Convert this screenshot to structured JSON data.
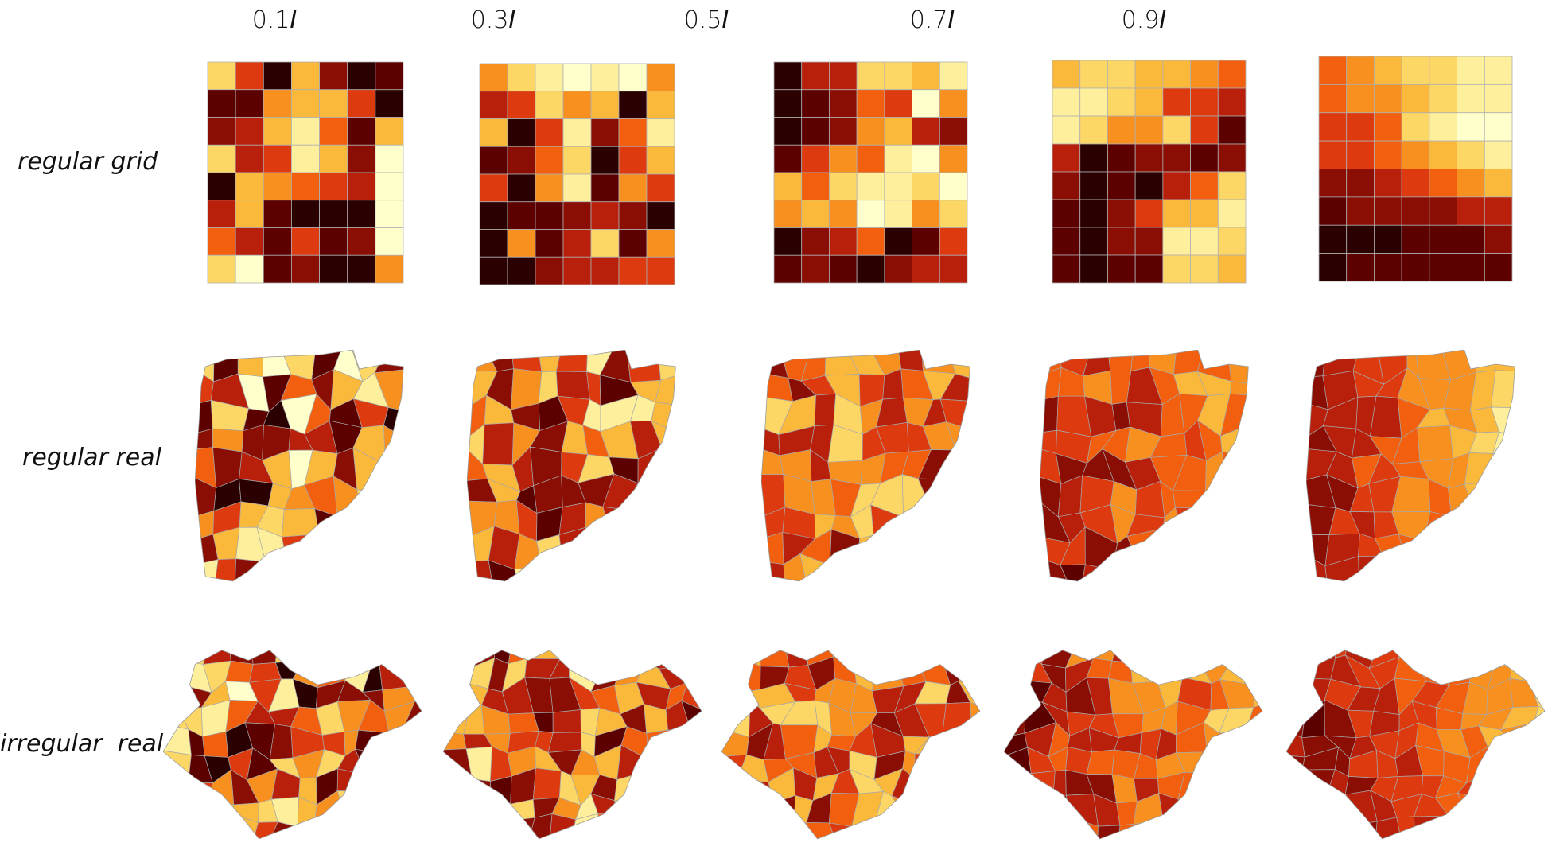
{
  "columns": [
    {
      "prefix": "0.1",
      "suffix": "I"
    },
    {
      "prefix": "0.3",
      "suffix": "I"
    },
    {
      "prefix": "0.5",
      "suffix": "I"
    },
    {
      "prefix": "0.7",
      "suffix": "I"
    },
    {
      "prefix": "0.9",
      "suffix": "I"
    }
  ],
  "rows": [
    {
      "label": "regular grid"
    },
    {
      "label": "regular real"
    },
    {
      "label": "irregular  real"
    }
  ],
  "palette": [
    "#2a0000",
    "#5c0000",
    "#8a0e04",
    "#b8200b",
    "#dd3a0f",
    "#f2600f",
    "#f8901f",
    "#fbb93c",
    "#fcd766",
    "#fdef9c",
    "#ffffcc"
  ],
  "grids": [
    [
      [
        8,
        4,
        0,
        7,
        2,
        0,
        1
      ],
      [
        1,
        1,
        6,
        7,
        7,
        4,
        0
      ],
      [
        2,
        3,
        7,
        9,
        5,
        1,
        7
      ],
      [
        8,
        3,
        4,
        9,
        7,
        2,
        10
      ],
      [
        0,
        7,
        6,
        5,
        4,
        3,
        10
      ],
      [
        3,
        7,
        1,
        0,
        0,
        0,
        10
      ],
      [
        5,
        3,
        1,
        4,
        1,
        2,
        10
      ],
      [
        8,
        10,
        1,
        2,
        0,
        0,
        6
      ]
    ],
    [
      [
        6,
        8,
        9,
        10,
        9,
        10,
        6
      ],
      [
        3,
        4,
        8,
        6,
        7,
        0,
        7
      ],
      [
        7,
        0,
        4,
        9,
        2,
        5,
        9
      ],
      [
        1,
        2,
        5,
        8,
        0,
        4,
        7
      ],
      [
        4,
        0,
        6,
        9,
        1,
        6,
        4
      ],
      [
        0,
        1,
        1,
        2,
        3,
        2,
        0
      ],
      [
        0,
        6,
        1,
        3,
        8,
        1,
        6
      ],
      [
        0,
        0,
        2,
        3,
        3,
        4,
        4
      ]
    ],
    [
      [
        0,
        3,
        3,
        8,
        8,
        7,
        9
      ],
      [
        0,
        1,
        2,
        5,
        4,
        10,
        6
      ],
      [
        0,
        1,
        2,
        6,
        7,
        3,
        2
      ],
      [
        1,
        4,
        6,
        5,
        9,
        10,
        6
      ],
      [
        7,
        5,
        8,
        9,
        9,
        8,
        10
      ],
      [
        6,
        7,
        6,
        10,
        9,
        6,
        8
      ],
      [
        0,
        2,
        3,
        5,
        0,
        1,
        4
      ],
      [
        1,
        2,
        1,
        0,
        2,
        3,
        3
      ]
    ],
    [
      [
        7,
        8,
        8,
        7,
        7,
        6,
        5
      ],
      [
        9,
        9,
        8,
        7,
        4,
        4,
        3
      ],
      [
        9,
        8,
        6,
        6,
        8,
        4,
        1
      ],
      [
        3,
        0,
        1,
        2,
        2,
        1,
        2
      ],
      [
        2,
        0,
        1,
        0,
        3,
        5,
        8
      ],
      [
        1,
        0,
        2,
        4,
        7,
        7,
        9
      ],
      [
        1,
        0,
        2,
        2,
        9,
        9,
        8
      ],
      [
        1,
        0,
        1,
        1,
        8,
        8,
        7
      ]
    ],
    [
      [
        5,
        6,
        7,
        8,
        8,
        9,
        9
      ],
      [
        5,
        6,
        6,
        7,
        8,
        9,
        9
      ],
      [
        4,
        4,
        5,
        8,
        9,
        10,
        10
      ],
      [
        4,
        4,
        5,
        6,
        7,
        8,
        9
      ],
      [
        2,
        2,
        3,
        4,
        5,
        6,
        7
      ],
      [
        1,
        2,
        2,
        2,
        2,
        3,
        3
      ],
      [
        0,
        0,
        0,
        1,
        1,
        1,
        2
      ],
      [
        0,
        1,
        1,
        1,
        1,
        1,
        1
      ]
    ]
  ]
}
